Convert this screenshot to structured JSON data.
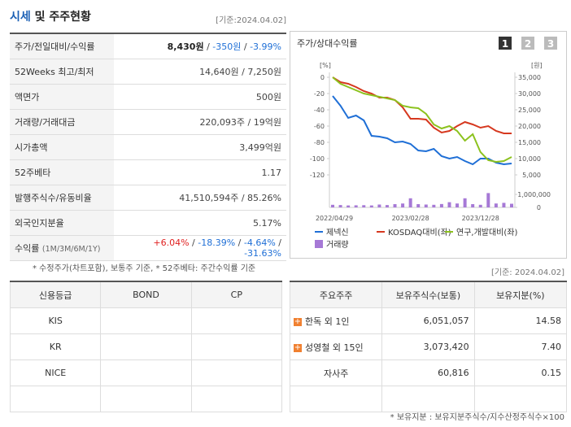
{
  "header": {
    "title_main": "시세",
    "title_rest": "및 주주현황",
    "as_of": "[기준:2024.04.02]"
  },
  "quote_table": {
    "separator": " / ",
    "rows": [
      {
        "label": "주가/전일대비/수익률",
        "parts": [
          "8,430원",
          "-350원",
          "-3.99%"
        ]
      },
      {
        "label": "52Weeks 최고/최저",
        "parts": [
          "14,640원",
          "7,250원"
        ]
      },
      {
        "label": "액면가",
        "parts": [
          "500원"
        ]
      },
      {
        "label": "거래량/거래대금",
        "parts": [
          "220,093주",
          "19억원"
        ]
      },
      {
        "label": "시가총액",
        "parts": [
          "3,499억원"
        ]
      },
      {
        "label": "52주베타",
        "parts": [
          "1.17"
        ]
      },
      {
        "label": "발행주식수/유동비율",
        "parts": [
          "41,510,594주",
          "85.26%"
        ]
      },
      {
        "label": "외국인지분율",
        "parts": [
          "5.17%"
        ]
      },
      {
        "label": "수익률",
        "sublabel": "(1M/3M/6M/1Y)",
        "parts": [
          "+6.04%",
          "-18.39%",
          "-4.64%",
          "-31.63%"
        ]
      }
    ]
  },
  "quote_note": "* 수정주가(차트포함), 보통주 기준, * 52주베타: 주간수익률 기준",
  "chart_panel": {
    "title": "주가/상대수익률",
    "buttons": [
      "1",
      "2",
      "3"
    ]
  },
  "chart_data": {
    "type": "line",
    "x": [
      "2022/04/29",
      null,
      null,
      null,
      null,
      null,
      null,
      null,
      null,
      null,
      "2023/02/28",
      null,
      null,
      null,
      null,
      null,
      null,
      null,
      null,
      "2023/12/28",
      null,
      null,
      null,
      null
    ],
    "y_unit": "[%]",
    "y2_unit": "[원]",
    "ylim": [
      -120,
      0
    ],
    "yticks": [
      0,
      -20,
      -40,
      -60,
      -80,
      -100,
      -120
    ],
    "y2lim": [
      5000,
      35000
    ],
    "y2ticks": [
      {
        "value": 35000,
        "label": "35,000"
      },
      {
        "value": 30000,
        "label": "30,000"
      },
      {
        "value": 25000,
        "label": "25,000"
      },
      {
        "value": 20000,
        "label": "20,000"
      },
      {
        "value": 15000,
        "label": "15,000"
      },
      {
        "value": 10000,
        "label": "10,000"
      },
      {
        "value": 5000,
        "label": "5,000"
      }
    ],
    "volume_lim": [
      0,
      1000000
    ],
    "volume_ticks": [
      {
        "value": 1000000,
        "label": "1,000,000"
      },
      0
    ],
    "series": [
      {
        "name": "제넥신",
        "color": "#1f6fd6",
        "values": [
          -23,
          -35,
          -50,
          -47,
          -53,
          -72,
          -73,
          -75,
          -80,
          -79,
          -82,
          -90,
          -91,
          -88,
          -97,
          -100,
          -98,
          -103,
          -107,
          -100,
          -100,
          -105,
          -107,
          -106
        ]
      },
      {
        "name": "KOSDAQ대비(좌)",
        "color": "#d6381f",
        "values": [
          0,
          -6,
          -8,
          -12,
          -17,
          -20,
          -25,
          -25,
          -28,
          -37,
          -51,
          -51,
          -52,
          -62,
          -68,
          -66,
          -60,
          -55,
          -58,
          -62,
          -60,
          -66,
          -69,
          -69
        ]
      },
      {
        "name": "연구,개발대비(좌)",
        "color": "#8cc21e",
        "values": [
          0,
          -8,
          -12,
          -16,
          -20,
          -22,
          -24,
          -26,
          -28,
          -35,
          -37,
          -38,
          -45,
          -58,
          -63,
          -60,
          -66,
          -78,
          -70,
          -92,
          -102,
          -104,
          -103,
          -98
        ]
      }
    ],
    "volume": {
      "name": "거래량",
      "color": "#a679d6",
      "values": [
        200000,
        180000,
        150000,
        160000,
        170000,
        150000,
        220000,
        180000,
        250000,
        300000,
        700000,
        250000,
        220000,
        200000,
        260000,
        400000,
        300000,
        700000,
        250000,
        200000,
        1100000,
        300000,
        350000,
        280000
      ]
    }
  },
  "credit_table": {
    "headers": [
      "신용등급",
      "BOND",
      "CP"
    ],
    "rows": [
      [
        "KIS",
        "",
        ""
      ],
      [
        "KR",
        "",
        ""
      ],
      [
        "NICE",
        "",
        ""
      ],
      [
        "",
        "",
        ""
      ]
    ]
  },
  "holders_as_of": "[기준: 2024.04.02]",
  "holders_table": {
    "headers": [
      "주요주주",
      "보유주식수(보통)",
      "보유지분(%)"
    ],
    "rows": [
      {
        "name": "한독 외 1인",
        "shares": "6,051,057",
        "pct": "14.58",
        "expand": true
      },
      {
        "name": "성영철 외 15인",
        "shares": "3,073,420",
        "pct": "7.40",
        "expand": true
      },
      {
        "name": "자사주",
        "shares": "60,816",
        "pct": "0.15",
        "expand": false
      },
      {
        "name": "",
        "shares": "",
        "pct": "",
        "expand": false
      }
    ]
  },
  "holders_note": "* 보유지분 : 보유지분주식수/지수산정주식수×100"
}
